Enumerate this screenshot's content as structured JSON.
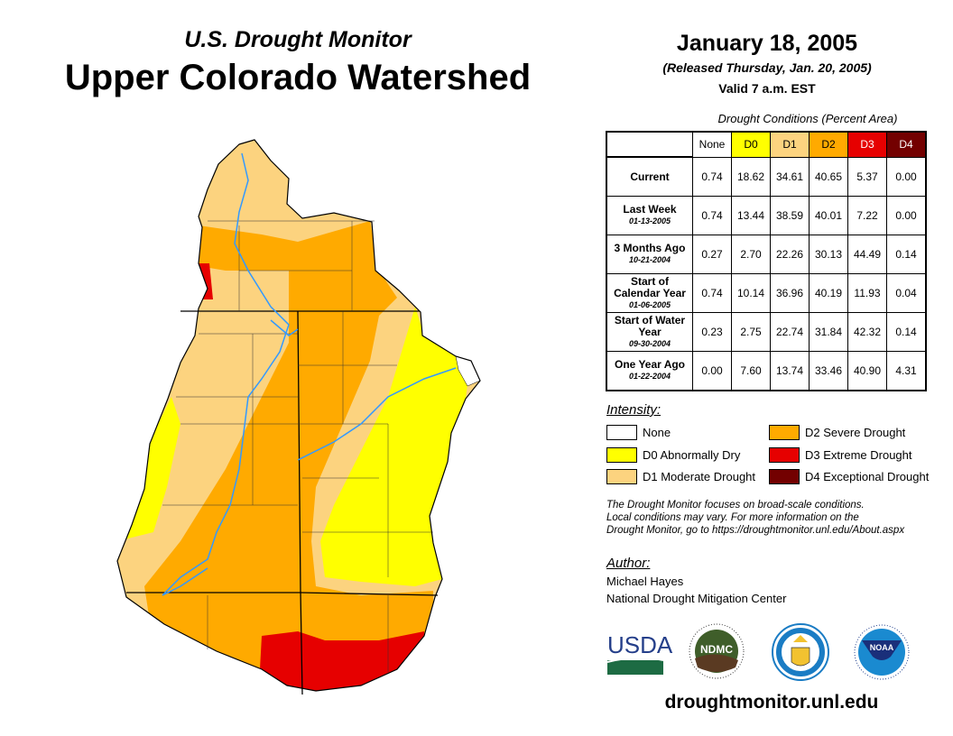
{
  "header": {
    "subtitle": "U.S. Drought Monitor",
    "title": "Upper Colorado Watershed"
  },
  "date": {
    "main": "January 18, 2005",
    "released": "(Released Thursday, Jan. 20, 2005)",
    "valid": "Valid 7 a.m. EST"
  },
  "table": {
    "caption": "Drought Conditions (Percent Area)",
    "columns": [
      "None",
      "D0",
      "D1",
      "D2",
      "D3",
      "D4"
    ],
    "column_colors": [
      "#ffffff",
      "#ffff00",
      "#fcd37f",
      "#ffaa00",
      "#e60000",
      "#730000"
    ],
    "rows": [
      {
        "label": "Current",
        "date": "",
        "values": [
          "0.74",
          "18.62",
          "34.61",
          "40.65",
          "5.37",
          "0.00"
        ]
      },
      {
        "label": "Last Week",
        "date": "01-13-2005",
        "values": [
          "0.74",
          "13.44",
          "38.59",
          "40.01",
          "7.22",
          "0.00"
        ]
      },
      {
        "label": "3 Months Ago",
        "date": "10-21-2004",
        "values": [
          "0.27",
          "2.70",
          "22.26",
          "30.13",
          "44.49",
          "0.14"
        ]
      },
      {
        "label": "Start of Calendar Year",
        "date": "01-06-2005",
        "values": [
          "0.74",
          "10.14",
          "36.96",
          "40.19",
          "11.93",
          "0.04"
        ]
      },
      {
        "label": "Start of Water Year",
        "date": "09-30-2004",
        "values": [
          "0.23",
          "2.75",
          "22.74",
          "31.84",
          "42.32",
          "0.14"
        ]
      },
      {
        "label": "One Year Ago",
        "date": "01-22-2004",
        "values": [
          "0.00",
          "7.60",
          "13.74",
          "33.46",
          "40.90",
          "4.31"
        ]
      }
    ]
  },
  "legend": {
    "title": "Intensity:",
    "items": [
      {
        "label": "None",
        "color": "#ffffff"
      },
      {
        "label": "D0 Abnormally Dry",
        "color": "#ffff00"
      },
      {
        "label": "D1 Moderate Drought",
        "color": "#fcd37f"
      },
      {
        "label": "D2 Severe Drought",
        "color": "#ffaa00"
      },
      {
        "label": "D3 Extreme Drought",
        "color": "#e60000"
      },
      {
        "label": "D4 Exceptional Drought",
        "color": "#730000"
      }
    ]
  },
  "note": [
    "The Drought Monitor focuses on broad-scale conditions.",
    "Local conditions may vary. For more information on the",
    "Drought Monitor, go to https://droughtmonitor.unl.edu/About.aspx"
  ],
  "author": {
    "heading": "Author:",
    "name": "Michael Hayes",
    "org": "National Drought Mitigation Center"
  },
  "logos": {
    "usda": "USDA",
    "ndmc": "NDMC",
    "noaa": "NOAA"
  },
  "footer_url": "droughtmonitor.unl.edu"
}
